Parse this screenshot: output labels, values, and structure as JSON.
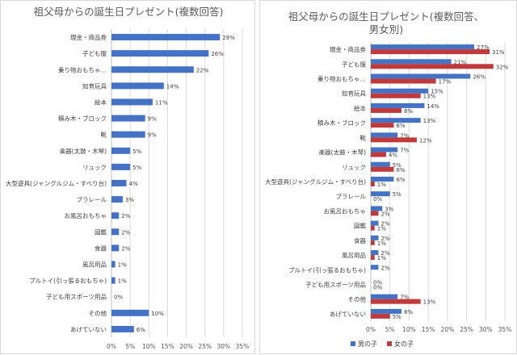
{
  "chart_data": [
    {
      "type": "bar",
      "orientation": "horizontal",
      "title": "祖父母からの誕生日プレゼント(複数回答)",
      "categories": [
        "現金・商品券",
        "子ども服",
        "乗り物おもちゃ…",
        "知育玩具",
        "絵本",
        "積み木・ブロック",
        "靴",
        "楽器(太鼓・木琴)",
        "リュック",
        "大型遊具(ジャングルジム・すべり台)",
        "プラレール",
        "お風呂おもちゃ",
        "図鑑",
        "食器",
        "風呂用品",
        "プルトイ(引っ張るおもちゃ)",
        "子ども用スポーツ用品",
        "その他",
        "あげていない"
      ],
      "series": [
        {
          "values": [
            29,
            26,
            22,
            14,
            11,
            9,
            9,
            5,
            5,
            4,
            3,
            2,
            2,
            2,
            1,
            1,
            0,
            10,
            6
          ],
          "labels": [
            "29%",
            "26%",
            "22%",
            "14%",
            "11%",
            "9%",
            "9%",
            "5%",
            "5%",
            "4%",
            "3%",
            "2%",
            "2%",
            "2%",
            "1%",
            "1%",
            "0%",
            "10%",
            "6%"
          ],
          "color": "#4472c4"
        }
      ],
      "xlim": [
        0,
        35
      ],
      "xticks": [
        "0%",
        "5%",
        "10%",
        "15%",
        "20%",
        "25%",
        "30%",
        "35%"
      ],
      "grid": true,
      "legend": "none"
    },
    {
      "type": "bar",
      "orientation": "horizontal",
      "title_lines": [
        "祖父母からの誕生日プレゼント(複数回答、",
        "男女別)"
      ],
      "categories": [
        "現金・商品券",
        "子ども服",
        "乗り物おもちゃ…",
        "知育玩具",
        "絵本",
        "積み木・ブロック",
        "靴",
        "楽器(太鼓・木琴)",
        "リュック",
        "大型遊具(ジャングルジム・すべり台)",
        "プラレール",
        "お風呂おもちゃ",
        "図鑑",
        "食器",
        "風呂用品",
        "プルトイ(引っ張るおもちゃ)",
        "子ども用スポーツ用品",
        "その他",
        "あげていない"
      ],
      "series": [
        {
          "name": "男の子",
          "color": "#4472c4",
          "values": [
            27,
            21,
            26,
            15,
            14,
            13,
            7,
            7,
            5,
            6,
            5,
            3,
            2,
            2,
            2,
            2,
            0,
            7,
            8
          ],
          "labels": [
            "27%",
            "21%",
            "26%",
            "15%",
            "14%",
            "13%",
            "7%",
            "7%",
            "5%",
            "6%",
            "5%",
            "3%",
            "2%",
            "2%",
            "2%",
            "2%",
            "0%",
            "7%",
            "8%"
          ]
        },
        {
          "name": "女の子",
          "color": "#c0393b",
          "values": [
            31,
            32,
            17,
            13,
            8,
            6,
            12,
            4,
            6,
            1,
            0,
            2,
            1,
            1,
            1,
            0,
            0,
            13,
            5
          ],
          "labels": [
            "31%",
            "32%",
            "17%",
            "13%",
            "8%",
            "6%",
            "12%",
            "4%",
            "6%",
            "1%",
            "0%",
            "2%",
            "1%",
            "1%",
            "1%",
            "",
            "0%",
            "13%",
            "5%"
          ]
        }
      ],
      "xlim": [
        0,
        35
      ],
      "xticks": [
        "0%",
        "5%",
        "10%",
        "15%",
        "20%",
        "25%",
        "30%",
        "35%"
      ],
      "grid": true,
      "legend": "bottom"
    }
  ]
}
